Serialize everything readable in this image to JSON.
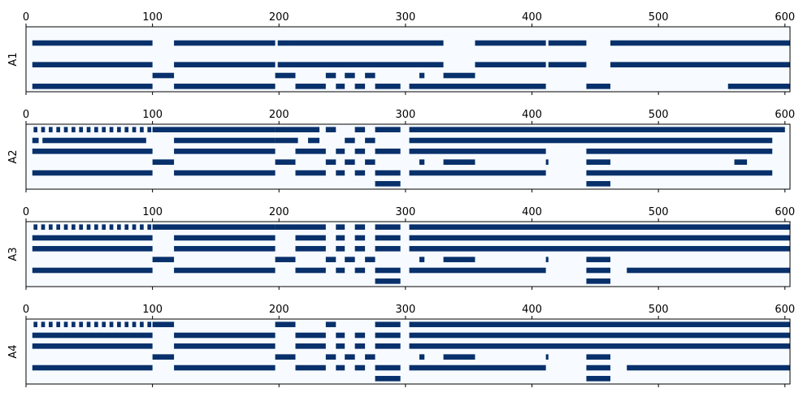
{
  "chart_data": {
    "type": "heatmap",
    "colormap": "Blues",
    "colors": {
      "empty": "#f7fbff",
      "filled": "#08306b",
      "frame": "#000000"
    },
    "xlim": [
      0,
      604
    ],
    "xticks": [
      "0",
      "100",
      "200",
      "300",
      "400",
      "500",
      "600"
    ],
    "rows_per_panel": 6,
    "panels": [
      {
        "ylabel": "A1",
        "rows": [
          [],
          [
            [
              5,
              100
            ],
            [
              117,
              197
            ],
            [
              199,
              213
            ],
            [
              213,
              330
            ],
            [
              355,
              411
            ],
            [
              413,
              443
            ],
            [
              462,
              604
            ]
          ],
          [],
          [
            [
              5,
              100
            ],
            [
              117,
              197
            ],
            [
              199,
              213
            ],
            [
              213,
              330
            ],
            [
              355,
              411
            ],
            [
              413,
              443
            ],
            [
              462,
              604
            ]
          ],
          [
            [
              100,
              117
            ],
            [
              197,
              213
            ],
            [
              237,
              245
            ],
            [
              252,
              260
            ],
            [
              268,
              276
            ],
            [
              311,
              315
            ],
            [
              330,
              355
            ]
          ],
          [
            [
              5,
              100
            ],
            [
              117,
              197
            ],
            [
              213,
              237
            ],
            [
              245,
              252
            ],
            [
              260,
              268
            ],
            [
              276,
              296
            ],
            [
              303,
              411
            ],
            [
              443,
              462
            ],
            [
              555,
              604
            ]
          ]
        ]
      },
      {
        "ylabel": "A2",
        "rows": [
          [
            [
              6,
              9
            ],
            [
              12,
              15
            ],
            [
              18,
              21
            ],
            [
              24,
              27
            ],
            [
              30,
              33
            ],
            [
              36,
              39
            ],
            [
              42,
              45
            ],
            [
              48,
              51
            ],
            [
              54,
              57
            ],
            [
              60,
              63
            ],
            [
              66,
              69
            ],
            [
              72,
              75
            ],
            [
              78,
              81
            ],
            [
              84,
              87
            ],
            [
              90,
              93
            ],
            [
              96,
              99
            ],
            [
              100,
              197
            ],
            [
              197,
              213
            ],
            [
              213,
              232
            ],
            [
              237,
              245
            ],
            [
              260,
              268
            ],
            [
              276,
              296
            ],
            [
              303,
              600
            ]
          ],
          [
            [
              5,
              10
            ],
            [
              13,
              95
            ],
            [
              117,
              197
            ],
            [
              197,
              215
            ],
            [
              223,
              232
            ],
            [
              252,
              260
            ],
            [
              268,
              276
            ],
            [
              303,
              590
            ]
          ],
          [
            [
              5,
              100
            ],
            [
              117,
              197
            ],
            [
              213,
              237
            ],
            [
              245,
              252
            ],
            [
              260,
              268
            ],
            [
              276,
              296
            ],
            [
              303,
              411
            ],
            [
              443,
              462
            ],
            [
              462,
              590
            ]
          ],
          [
            [
              100,
              117
            ],
            [
              197,
              213
            ],
            [
              237,
              245
            ],
            [
              252,
              260
            ],
            [
              268,
              276
            ],
            [
              311,
              315
            ],
            [
              330,
              355
            ],
            [
              411,
              413
            ],
            [
              443,
              462
            ],
            [
              560,
              570
            ]
          ],
          [
            [
              5,
              100
            ],
            [
              117,
              197
            ],
            [
              213,
              237
            ],
            [
              245,
              252
            ],
            [
              260,
              268
            ],
            [
              276,
              296
            ],
            [
              303,
              411
            ],
            [
              443,
              462
            ],
            [
              462,
              590
            ]
          ],
          [
            [
              276,
              296
            ],
            [
              443,
              462
            ]
          ]
        ]
      },
      {
        "ylabel": "A3",
        "rows": [
          [
            [
              6,
              9
            ],
            [
              12,
              15
            ],
            [
              18,
              21
            ],
            [
              24,
              27
            ],
            [
              30,
              33
            ],
            [
              36,
              39
            ],
            [
              42,
              45
            ],
            [
              48,
              51
            ],
            [
              54,
              57
            ],
            [
              60,
              63
            ],
            [
              66,
              69
            ],
            [
              72,
              75
            ],
            [
              78,
              81
            ],
            [
              84,
              87
            ],
            [
              90,
              93
            ],
            [
              96,
              99
            ],
            [
              100,
              197
            ],
            [
              197,
              213
            ],
            [
              213,
              237
            ],
            [
              245,
              252
            ],
            [
              260,
              268
            ],
            [
              276,
              296
            ],
            [
              303,
              604
            ]
          ],
          [
            [
              5,
              100
            ],
            [
              117,
              197
            ],
            [
              213,
              237
            ],
            [
              245,
              252
            ],
            [
              260,
              268
            ],
            [
              276,
              296
            ],
            [
              303,
              604
            ]
          ],
          [
            [
              5,
              100
            ],
            [
              117,
              197
            ],
            [
              213,
              237
            ],
            [
              245,
              252
            ],
            [
              260,
              268
            ],
            [
              276,
              296
            ],
            [
              303,
              604
            ]
          ],
          [
            [
              100,
              117
            ],
            [
              197,
              213
            ],
            [
              237,
              245
            ],
            [
              252,
              260
            ],
            [
              268,
              276
            ],
            [
              311,
              315
            ],
            [
              330,
              355
            ],
            [
              411,
              413
            ],
            [
              443,
              462
            ]
          ],
          [
            [
              5,
              100
            ],
            [
              117,
              197
            ],
            [
              213,
              237
            ],
            [
              245,
              252
            ],
            [
              260,
              268
            ],
            [
              276,
              296
            ],
            [
              303,
              411
            ],
            [
              443,
              462
            ],
            [
              475,
              604
            ]
          ],
          [
            [
              276,
              296
            ],
            [
              443,
              462
            ]
          ]
        ]
      },
      {
        "ylabel": "A4",
        "rows": [
          [
            [
              6,
              9
            ],
            [
              12,
              15
            ],
            [
              18,
              21
            ],
            [
              24,
              27
            ],
            [
              30,
              33
            ],
            [
              36,
              39
            ],
            [
              42,
              45
            ],
            [
              48,
              51
            ],
            [
              54,
              57
            ],
            [
              60,
              63
            ],
            [
              66,
              69
            ],
            [
              72,
              75
            ],
            [
              78,
              81
            ],
            [
              84,
              87
            ],
            [
              90,
              93
            ],
            [
              96,
              99
            ],
            [
              100,
              117
            ],
            [
              197,
              213
            ],
            [
              237,
              245
            ],
            [
              276,
              296
            ],
            [
              303,
              604
            ]
          ],
          [
            [
              5,
              100
            ],
            [
              117,
              197
            ],
            [
              213,
              237
            ],
            [
              245,
              252
            ],
            [
              260,
              268
            ],
            [
              276,
              296
            ],
            [
              303,
              604
            ]
          ],
          [
            [
              5,
              100
            ],
            [
              117,
              197
            ],
            [
              213,
              237
            ],
            [
              245,
              252
            ],
            [
              260,
              268
            ],
            [
              276,
              296
            ],
            [
              303,
              604
            ]
          ],
          [
            [
              100,
              117
            ],
            [
              197,
              213
            ],
            [
              237,
              245
            ],
            [
              252,
              260
            ],
            [
              268,
              276
            ],
            [
              311,
              315
            ],
            [
              330,
              355
            ],
            [
              411,
              413
            ],
            [
              443,
              462
            ]
          ],
          [
            [
              5,
              100
            ],
            [
              117,
              197
            ],
            [
              213,
              237
            ],
            [
              245,
              252
            ],
            [
              260,
              268
            ],
            [
              276,
              296
            ],
            [
              303,
              411
            ],
            [
              443,
              462
            ],
            [
              475,
              604
            ]
          ],
          [
            [
              276,
              296
            ],
            [
              443,
              462
            ]
          ]
        ]
      }
    ]
  }
}
